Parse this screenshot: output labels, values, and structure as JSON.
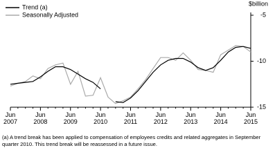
{
  "chart_data": {
    "type": "line",
    "unit_label": "$billion",
    "categories": [
      "Jun\n2007",
      null,
      null,
      null,
      "Jun\n2008",
      null,
      null,
      null,
      "Jun\n2009",
      null,
      null,
      null,
      "Jun\n2010",
      null,
      null,
      null,
      "Jun\n2011",
      null,
      null,
      null,
      "Jun\n2012",
      null,
      null,
      null,
      "Jun\n2013",
      null,
      null,
      null,
      "Jun\n2014",
      null,
      null,
      null,
      "Jun\n2015"
    ],
    "series": [
      {
        "name": "Trend (a)",
        "color": "#000000",
        "values": [
          -12.5,
          -12.4,
          -12.3,
          -12.2,
          -11.7,
          -11.1,
          -10.6,
          -10.6,
          -10.9,
          -11.4,
          -11.9,
          -12.3,
          -13.0,
          null,
          -14.4,
          -14.5,
          -14.0,
          -13.2,
          -12.2,
          -11.2,
          -10.4,
          -9.9,
          -9.7,
          -9.7,
          -10.1,
          -10.7,
          -11.0,
          -10.7,
          -9.9,
          -9.0,
          -8.5,
          -8.4,
          -8.6
        ]
      },
      {
        "name": "Seasonally Adjusted",
        "color": "#aaaaaa",
        "values": [
          -12.7,
          -12.4,
          -12.2,
          -11.6,
          -11.9,
          -10.8,
          -10.4,
          -10.2,
          -12.5,
          -11.1,
          -13.8,
          -13.7,
          -11.8,
          -13.9,
          -14.6,
          -14.3,
          -13.9,
          -13.0,
          -12.0,
          -10.8,
          -9.6,
          -9.6,
          -9.9,
          -9.1,
          -9.9,
          -10.9,
          -11.0,
          -11.2,
          -9.3,
          -8.8,
          -8.3,
          -8.4,
          -9.0
        ]
      }
    ],
    "ylim": [
      -15,
      -5
    ],
    "yticks": [
      -5,
      -10,
      -15
    ],
    "grid": false,
    "footnote": "(a) A trend break has been applied to compensation of employees credits and related aggregates in September quarter 2010. This trend break will be reassessed in a future issue."
  }
}
